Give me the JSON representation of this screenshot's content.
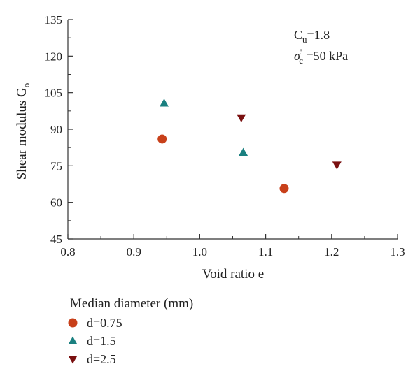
{
  "chart_data": {
    "type": "scatter",
    "title": "",
    "xlabel": "Void ratio e",
    "ylabel": "Shear modulus G",
    "ylabel_subscript": "o",
    "xlim": [
      0.8,
      1.3
    ],
    "ylim": [
      45,
      135
    ],
    "xticks": [
      0.8,
      0.9,
      1.0,
      1.1,
      1.2,
      1.3
    ],
    "xtick_labels": [
      "0.8",
      "0.9",
      "1.0",
      "1.1",
      "1.2",
      "1.3"
    ],
    "yticks": [
      45,
      60,
      75,
      90,
      105,
      120,
      135
    ],
    "ytick_labels": [
      "45",
      "60",
      "75",
      "90",
      "105",
      "120",
      "135"
    ],
    "grid": false,
    "legend_position": "below-left",
    "legend_title": "Median diameter (mm)",
    "annotations": {
      "cu_symbol": "C",
      "cu_subscript": "u",
      "cu_value": "=1.8",
      "sigma_symbol": "σ",
      "sigma_subscript": "c",
      "sigma_prime": "'",
      "sigma_value": " =50 kPa"
    },
    "series": [
      {
        "name": "d=0.75",
        "marker": "circle",
        "color": "#c8401a",
        "points": [
          {
            "x": 0.943,
            "y": 86.0
          },
          {
            "x": 1.128,
            "y": 65.7
          }
        ]
      },
      {
        "name": "d=1.5",
        "marker": "triangle-up",
        "color": "#1a8080",
        "points": [
          {
            "x": 0.946,
            "y": 100.7
          },
          {
            "x": 1.066,
            "y": 80.5
          }
        ]
      },
      {
        "name": "d=2.5",
        "marker": "triangle-down",
        "color": "#7a1010",
        "points": [
          {
            "x": 1.063,
            "y": 94.7
          },
          {
            "x": 1.208,
            "y": 75.3
          }
        ]
      }
    ]
  }
}
